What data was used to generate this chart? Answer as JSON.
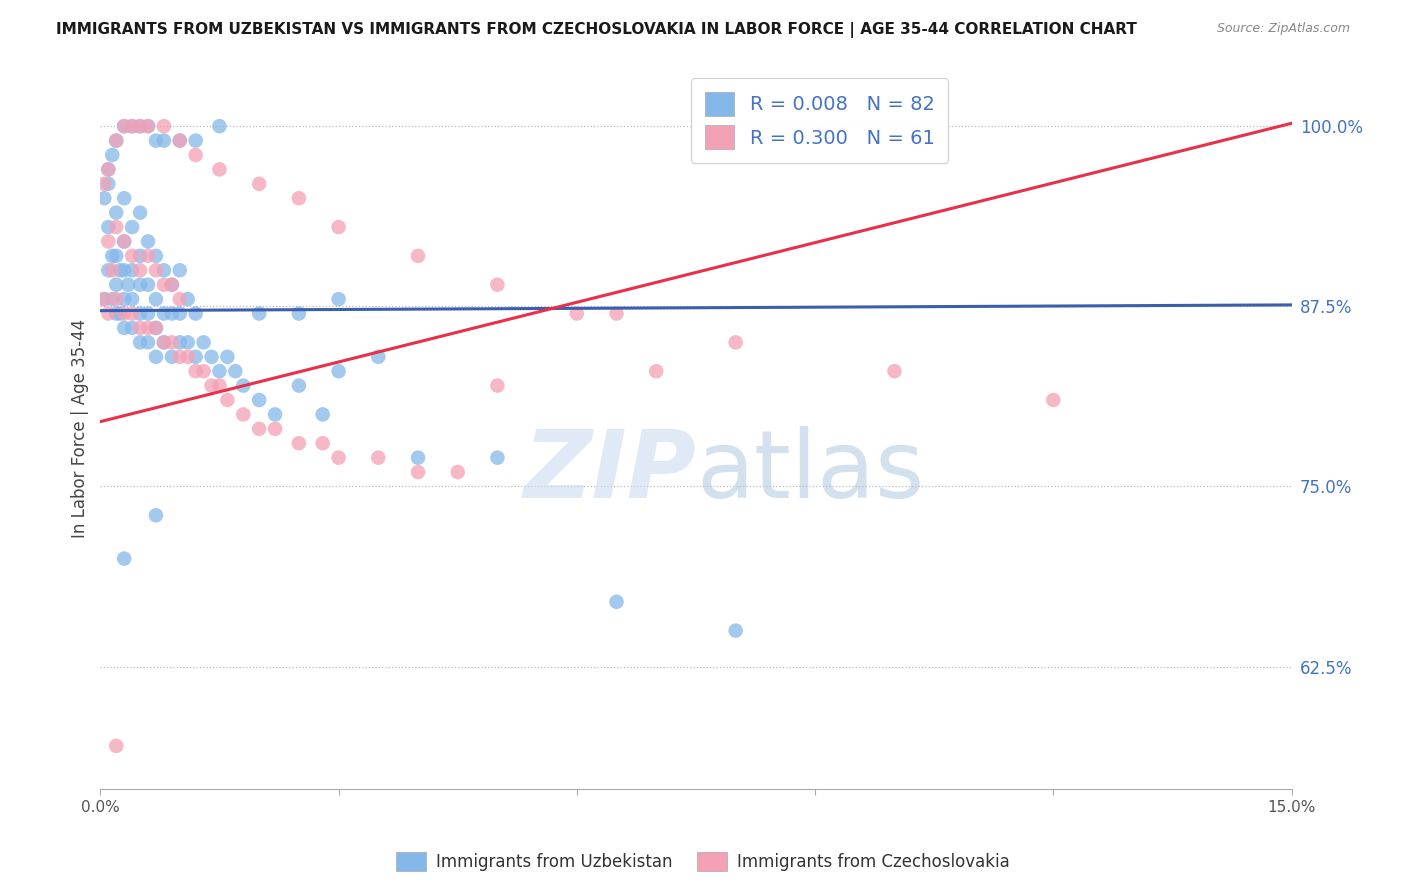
{
  "title": "IMMIGRANTS FROM UZBEKISTAN VS IMMIGRANTS FROM CZECHOSLOVAKIA IN LABOR FORCE | AGE 35-44 CORRELATION CHART",
  "source": "Source: ZipAtlas.com",
  "ylabel": "In Labor Force | Age 35-44",
  "xlim": [
    0.0,
    0.15
  ],
  "ylim": [
    0.54,
    1.04
  ],
  "yticks": [
    0.625,
    0.75,
    0.875,
    1.0
  ],
  "ytick_labels": [
    "62.5%",
    "75.0%",
    "87.5%",
    "100.0%"
  ],
  "xticks": [
    0.0,
    0.03,
    0.06,
    0.09,
    0.12,
    0.15
  ],
  "xtick_labels": [
    "0.0%",
    "",
    "",
    "",
    "",
    "15.0%"
  ],
  "legend_R_uzbekistan": "0.008",
  "legend_N_uzbekistan": "82",
  "legend_R_czechoslovakia": "0.300",
  "legend_N_czechoslovakia": "61",
  "color_uzbekistan": "#85B8EA",
  "color_czechoslovakia": "#F4A0B5",
  "trendline_color_uzbekistan": "#3B5FAC",
  "trendline_color_czechoslovakia": "#E8304A",
  "watermark_zip": "ZIP",
  "watermark_atlas": "atlas",
  "uzb_x": [
    0.0005,
    0.001,
    0.001,
    0.001,
    0.0015,
    0.0015,
    0.002,
    0.002,
    0.002,
    0.002,
    0.0025,
    0.0025,
    0.003,
    0.003,
    0.003,
    0.003,
    0.003,
    0.0035,
    0.004,
    0.004,
    0.004,
    0.004,
    0.005,
    0.005,
    0.005,
    0.005,
    0.005,
    0.006,
    0.006,
    0.006,
    0.006,
    0.007,
    0.007,
    0.007,
    0.007,
    0.008,
    0.008,
    0.008,
    0.009,
    0.009,
    0.009,
    0.01,
    0.01,
    0.01,
    0.011,
    0.011,
    0.012,
    0.012,
    0.013,
    0.014,
    0.015,
    0.016,
    0.017,
    0.018,
    0.02,
    0.022,
    0.025,
    0.028,
    0.03,
    0.035,
    0.0005,
    0.001,
    0.0015,
    0.002,
    0.003,
    0.004,
    0.005,
    0.006,
    0.007,
    0.008,
    0.01,
    0.012,
    0.015,
    0.02,
    0.025,
    0.03,
    0.04,
    0.05,
    0.065,
    0.08,
    0.003,
    0.007
  ],
  "uzb_y": [
    0.88,
    0.9,
    0.93,
    0.96,
    0.88,
    0.91,
    0.87,
    0.89,
    0.91,
    0.94,
    0.87,
    0.9,
    0.86,
    0.88,
    0.9,
    0.92,
    0.95,
    0.89,
    0.86,
    0.88,
    0.9,
    0.93,
    0.85,
    0.87,
    0.89,
    0.91,
    0.94,
    0.85,
    0.87,
    0.89,
    0.92,
    0.84,
    0.86,
    0.88,
    0.91,
    0.85,
    0.87,
    0.9,
    0.84,
    0.87,
    0.89,
    0.85,
    0.87,
    0.9,
    0.85,
    0.88,
    0.84,
    0.87,
    0.85,
    0.84,
    0.83,
    0.84,
    0.83,
    0.82,
    0.81,
    0.8,
    0.82,
    0.8,
    0.83,
    0.84,
    0.95,
    0.97,
    0.98,
    0.99,
    1.0,
    1.0,
    1.0,
    1.0,
    0.99,
    0.99,
    0.99,
    0.99,
    1.0,
    0.87,
    0.87,
    0.88,
    0.77,
    0.77,
    0.67,
    0.65,
    0.7,
    0.73
  ],
  "czech_x": [
    0.0005,
    0.001,
    0.001,
    0.0015,
    0.002,
    0.002,
    0.003,
    0.003,
    0.004,
    0.004,
    0.005,
    0.005,
    0.006,
    0.006,
    0.007,
    0.007,
    0.008,
    0.008,
    0.009,
    0.009,
    0.01,
    0.01,
    0.011,
    0.012,
    0.013,
    0.014,
    0.015,
    0.016,
    0.018,
    0.02,
    0.022,
    0.025,
    0.028,
    0.03,
    0.035,
    0.04,
    0.045,
    0.05,
    0.06,
    0.07,
    0.0005,
    0.001,
    0.002,
    0.003,
    0.004,
    0.005,
    0.006,
    0.008,
    0.01,
    0.012,
    0.015,
    0.02,
    0.025,
    0.03,
    0.04,
    0.05,
    0.065,
    0.08,
    0.1,
    0.12,
    0.002
  ],
  "czech_y": [
    0.88,
    0.87,
    0.92,
    0.9,
    0.88,
    0.93,
    0.87,
    0.92,
    0.87,
    0.91,
    0.86,
    0.9,
    0.86,
    0.91,
    0.86,
    0.9,
    0.85,
    0.89,
    0.85,
    0.89,
    0.84,
    0.88,
    0.84,
    0.83,
    0.83,
    0.82,
    0.82,
    0.81,
    0.8,
    0.79,
    0.79,
    0.78,
    0.78,
    0.77,
    0.77,
    0.76,
    0.76,
    0.82,
    0.87,
    0.83,
    0.96,
    0.97,
    0.99,
    1.0,
    1.0,
    1.0,
    1.0,
    1.0,
    0.99,
    0.98,
    0.97,
    0.96,
    0.95,
    0.93,
    0.91,
    0.89,
    0.87,
    0.85,
    0.83,
    0.81,
    0.57
  ],
  "uzb_trend_x": [
    0.0,
    0.15
  ],
  "uzb_trend_y": [
    0.872,
    0.876
  ],
  "czech_trend_x": [
    0.0,
    0.15
  ],
  "czech_trend_y": [
    0.795,
    1.002
  ]
}
